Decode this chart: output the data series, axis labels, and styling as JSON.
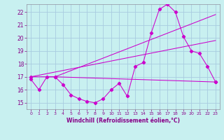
{
  "background_color": "#c8f0f0",
  "grid_color": "#a8cce0",
  "line_color": "#cc00cc",
  "xlabel": "Windchill (Refroidissement éolien,°C)",
  "ylim": [
    14.5,
    22.6
  ],
  "xlim": [
    -0.5,
    23.5
  ],
  "yticks": [
    15,
    16,
    17,
    18,
    19,
    20,
    21,
    22
  ],
  "xticks": [
    0,
    1,
    2,
    3,
    4,
    5,
    6,
    7,
    8,
    9,
    10,
    11,
    12,
    13,
    14,
    15,
    16,
    17,
    18,
    19,
    20,
    21,
    22,
    23
  ],
  "line1_x": [
    0,
    1,
    2,
    3,
    4,
    5,
    6,
    7,
    8,
    9,
    10,
    11,
    12,
    13,
    14,
    15,
    16,
    17,
    18,
    19,
    20,
    21,
    22,
    23
  ],
  "line1_y": [
    16.8,
    16.0,
    17.0,
    17.0,
    16.4,
    15.6,
    15.3,
    15.1,
    15.0,
    15.3,
    16.0,
    16.5,
    15.5,
    17.8,
    18.1,
    20.4,
    22.2,
    22.6,
    22.0,
    20.1,
    19.0,
    18.8,
    17.8,
    16.6
  ],
  "line2_x": [
    0,
    3,
    23
  ],
  "line2_y": [
    17.0,
    17.0,
    16.6
  ],
  "line3_x": [
    0,
    23
  ],
  "line3_y": [
    17.0,
    19.8
  ],
  "line4_x": [
    3,
    23
  ],
  "line4_y": [
    17.0,
    21.8
  ],
  "marker": "D",
  "marker_size": 2.2,
  "linewidth": 0.75
}
